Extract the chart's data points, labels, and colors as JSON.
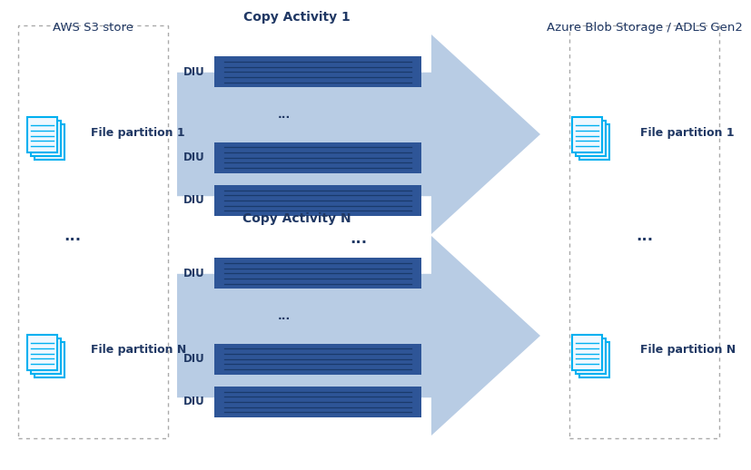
{
  "fig_width": 7.92,
  "fig_height": 4.98,
  "bg_color": "#ffffff",
  "left_box_title": "AWS S3 store",
  "right_box_title": "Azure Blob Storage / ADLS Gen2",
  "copy_activity_1_title": "Copy Activity 1",
  "copy_activity_n_title": "Copy Activity N",
  "arrow_color": "#b8cce4",
  "diu_bar_bg": "#2e5597",
  "diu_bar_line": "#1a3a6b",
  "text_color": "#203864",
  "diu_text_color": "#203864",
  "dots_color": "#203864",
  "title_color": "#203864",
  "border_color": "#aaaaaa",
  "icon_stroke_color": "#00b0f0",
  "icon_fill_color": "#ffffff",
  "icon_line_color": "#00b0f0",
  "file_partition_1": "File partition 1",
  "file_partition_n": "File partition N"
}
